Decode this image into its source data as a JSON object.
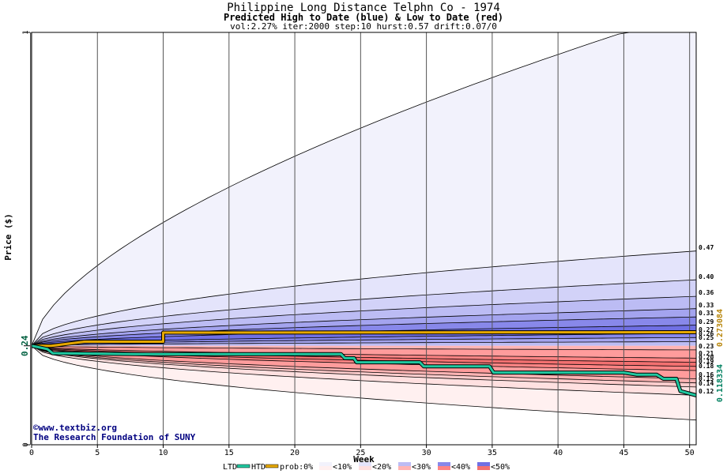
{
  "chart_data": {
    "type": "area",
    "title": "Philippine Long Distance Telphn Co  - 1974",
    "subtitle": "Predicted High to Date (blue) &  Low to Date (red)",
    "params": "vol:2.27% iter:2000 step:10 hurst:0.57 drift:0.07/0",
    "xlabel": "Week",
    "ylabel": "Price ($)",
    "xlim": [
      0,
      50.5
    ],
    "ylim": [
      0,
      1
    ],
    "x_ticks": [
      0,
      5,
      10,
      15,
      20,
      25,
      30,
      35,
      40,
      45,
      50
    ],
    "y_tick_labels": [
      "0",
      "0.24",
      "1"
    ],
    "start_price": 0.24,
    "right_labels": [
      "0.47",
      "0.40",
      "0.36",
      "0.33",
      "0.31",
      "0.29",
      "0.27",
      "0.26",
      "0.25",
      "0.23",
      "0.21",
      "0.20",
      "0.19",
      "0.18",
      "0.16",
      "0.15",
      "0.14",
      "0.12"
    ],
    "htd_final": "0.273084",
    "ltd_final": "0.118334",
    "band_upper_finals": [
      1.0,
      0.47,
      0.4,
      0.36,
      0.33,
      0.31,
      0.29,
      0.27,
      0.26,
      0.25
    ],
    "band_lower_finals": [
      0.23,
      0.21,
      0.2,
      0.19,
      0.18,
      0.16,
      0.15,
      0.14,
      0.12,
      0.06
    ],
    "htd": [
      [
        0,
        0.24
      ],
      [
        1.5,
        0.24
      ],
      [
        4,
        0.25
      ],
      [
        10,
        0.25
      ],
      [
        10,
        0.272
      ],
      [
        50.5,
        0.273
      ]
    ],
    "ltd": [
      [
        0,
        0.24
      ],
      [
        1.2,
        0.232
      ],
      [
        1.6,
        0.222
      ],
      [
        8,
        0.22
      ],
      [
        23.5,
        0.22
      ],
      [
        23.8,
        0.21
      ],
      [
        24.5,
        0.21
      ],
      [
        24.7,
        0.2
      ],
      [
        29.5,
        0.2
      ],
      [
        29.8,
        0.19
      ],
      [
        34.8,
        0.19
      ],
      [
        35.1,
        0.175
      ],
      [
        45,
        0.175
      ],
      [
        46,
        0.17
      ],
      [
        47.5,
        0.17
      ],
      [
        48,
        0.16
      ],
      [
        49,
        0.16
      ],
      [
        49.3,
        0.13
      ],
      [
        50.5,
        0.12
      ]
    ],
    "legend": [
      "LTD",
      "HTD",
      "prob:0%",
      "<10%",
      "<20%",
      "<30%",
      "<40%",
      "<50%"
    ],
    "watermark_line1": "www.textbiz.org",
    "watermark_line2": "The Research Foundation of SUNY"
  },
  "colors": {
    "band_upper": [
      "#f2f2fc",
      "#e4e4fb",
      "#d2d2f8",
      "#bcbcf4",
      "#a4a4ef",
      "#8888ea",
      "#7070e4"
    ],
    "band_lower": [
      "#fff0f0",
      "#ffe0e0",
      "#ffcccc",
      "#ffb4b4",
      "#ff9c9c",
      "#ff8484",
      "#f27070"
    ],
    "htd": "#e6a800",
    "ltd": "#20c8a0",
    "htd_label": "#b8860b",
    "ltd_label": "#008060",
    "watermark": "#000080",
    "grid": "#555555"
  }
}
